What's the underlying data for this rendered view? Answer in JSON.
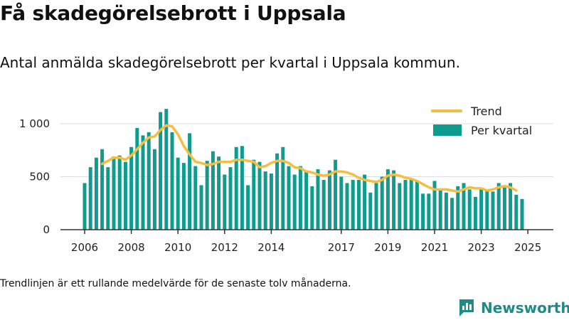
{
  "title": "Få skadegörelsebrott i Uppsala",
  "subtitle": "Antal anmälda skadegörelsebrott per kvartal i Uppsala kommun.",
  "footnote": "Trendlinjen är ett rullande medelvärde för de senaste tolv månaderna.",
  "brand": {
    "name": "Newsworthy",
    "icon": "bar-chart-logo-icon"
  },
  "colors": {
    "bars": "#0f9b8e",
    "trend": "#f5bd42",
    "grid": "#dddddd",
    "axis": "#333333",
    "brand": "#1f8a8a"
  },
  "chart_data": {
    "type": "bar",
    "x_start": "2006 Q1",
    "ylim": [
      0,
      1150
    ],
    "yticks": [
      0,
      500,
      1000
    ],
    "ytick_labels": [
      "0",
      "500",
      "1 000"
    ],
    "xticks": [
      2006,
      2008,
      2010,
      2012,
      2014,
      2017,
      2019,
      2021,
      2023,
      2025
    ],
    "grid": true,
    "legend": {
      "position": "top-right",
      "entries": [
        "Trend",
        "Per kvartal"
      ]
    },
    "series": [
      {
        "name": "Per kvartal",
        "type": "bar",
        "values": [
          440,
          590,
          680,
          760,
          590,
          690,
          700,
          640,
          780,
          960,
          890,
          920,
          760,
          1110,
          1140,
          920,
          680,
          630,
          910,
          600,
          420,
          650,
          740,
          690,
          520,
          590,
          780,
          790,
          420,
          660,
          640,
          550,
          530,
          720,
          780,
          600,
          520,
          600,
          560,
          410,
          570,
          470,
          560,
          660,
          500,
          440,
          470,
          470,
          520,
          350,
          440,
          500,
          570,
          560,
          440,
          470,
          480,
          460,
          340,
          340,
          460,
          380,
          350,
          300,
          410,
          440,
          380,
          310,
          380,
          380,
          360,
          440,
          420,
          440,
          330,
          290
        ]
      },
      {
        "name": "Trend",
        "type": "line",
        "x_start": "2006 Q4",
        "values": [
          620,
          650,
          680,
          680,
          660,
          700,
          760,
          820,
          870,
          880,
          940,
          985,
          975,
          900,
          790,
          710,
          640,
          630,
          610,
          620,
          640,
          640,
          640,
          660,
          660,
          650,
          640,
          590,
          600,
          630,
          650,
          650,
          630,
          590,
          580,
          550,
          540,
          520,
          510,
          520,
          550,
          550,
          540,
          520,
          490,
          470,
          460,
          450,
          470,
          510,
          520,
          510,
          490,
          480,
          460,
          430,
          400,
          380,
          380,
          380,
          370,
          360,
          380,
          400,
          390,
          390,
          370,
          380,
          400,
          410,
          400,
          370
        ]
      }
    ]
  }
}
